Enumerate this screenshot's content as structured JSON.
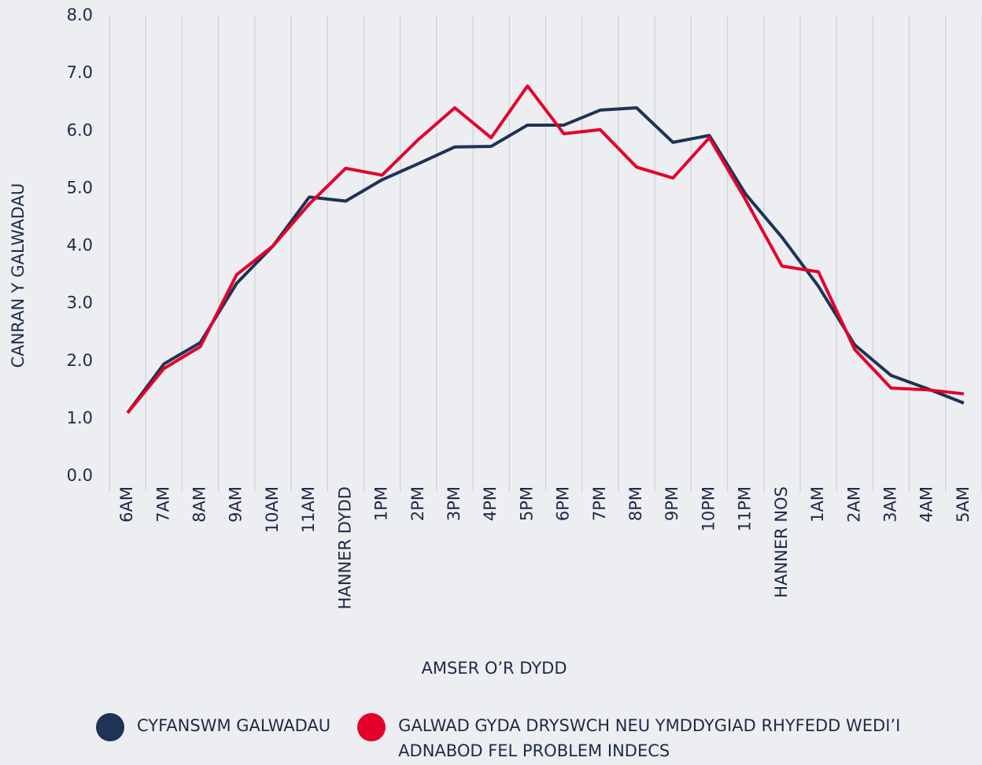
{
  "chart_data": {
    "type": "line",
    "x_label": "AMSER O’R DYDD",
    "y_label": "CANRAN Y GALWADAU",
    "categories": [
      "6AM",
      "7AM",
      "8AM",
      "9AM",
      "10AM",
      "11AM",
      "HANNER DYDD",
      "1PM",
      "2PM",
      "3PM",
      "4PM",
      "5PM",
      "6PM",
      "7PM",
      "8PM",
      "9PM",
      "10PM",
      "11PM",
      "HANNER NOS",
      "1AM",
      "2AM",
      "3AM",
      "4AM",
      "5AM"
    ],
    "series": [
      {
        "name": "CYFANSWM GALWADAU",
        "color": "#1e3355",
        "values": [
          1.1,
          1.95,
          2.32,
          3.35,
          4.0,
          4.85,
          4.78,
          5.15,
          5.43,
          5.72,
          5.73,
          6.1,
          6.1,
          6.36,
          6.4,
          5.8,
          5.92,
          4.9,
          4.15,
          3.3,
          2.28,
          1.75,
          1.52,
          1.27
        ]
      },
      {
        "name": "GALWAD GYDA DRYSWCH NEU YMDDYGIAD RHYFEDD WEDI’I ADNABOD FEL PROBLEM INDECS",
        "color": "#e4002b",
        "values": [
          1.1,
          1.87,
          2.25,
          3.5,
          4.0,
          4.73,
          5.35,
          5.23,
          5.85,
          6.4,
          5.88,
          6.78,
          5.95,
          6.02,
          5.37,
          5.18,
          5.88,
          4.8,
          3.65,
          3.55,
          2.2,
          1.53,
          1.5,
          1.43
        ]
      }
    ],
    "ylim": [
      0,
      8
    ],
    "yticks": [
      {
        "value": 0,
        "label": "0.0"
      },
      {
        "value": 1,
        "label": "1.0"
      },
      {
        "value": 2,
        "label": "2.0"
      },
      {
        "value": 3,
        "label": "3.0"
      },
      {
        "value": 4,
        "label": "4.0"
      },
      {
        "value": 5,
        "label": "5.0"
      },
      {
        "value": 6,
        "label": "6.0"
      },
      {
        "value": 7,
        "label": "7.0"
      },
      {
        "value": 8,
        "label": "8.0"
      }
    ]
  }
}
